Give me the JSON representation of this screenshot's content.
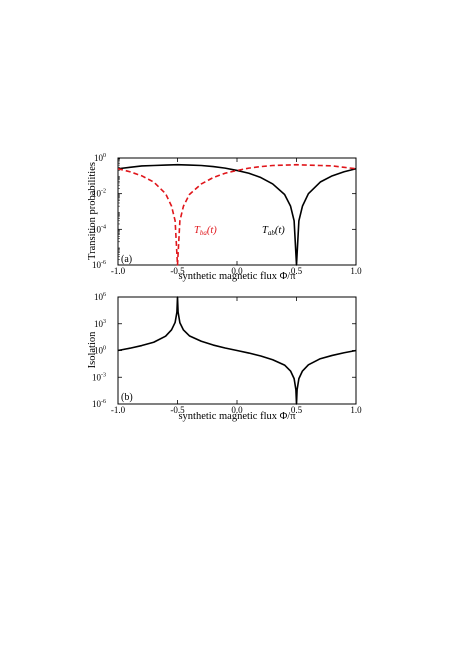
{
  "chart_data": [
    {
      "panel": "(a)",
      "type": "line",
      "ylabel": "Transition probabilities",
      "xlabel": "synthetic magnetic flux  Φ/π",
      "xlim": [
        -1.0,
        1.0
      ],
      "ylim_log10": [
        -6,
        0
      ],
      "yscale": "log",
      "xticks": [
        "-1.0",
        "-0.5",
        "0.0",
        "0.5",
        "1.0"
      ],
      "yticks": [
        {
          "base": "10",
          "exp": "0"
        },
        {
          "base": "10",
          "exp": "-2"
        },
        {
          "base": "10",
          "exp": "-4"
        },
        {
          "base": "10",
          "exp": "-6"
        }
      ],
      "series": [
        {
          "name": "T_ab(t)",
          "label_main": "T",
          "label_sub": "ab",
          "label_tail": "(t)",
          "color": "#000000",
          "style": "solid",
          "x": [
            -1.0,
            -0.9,
            -0.8,
            -0.7,
            -0.6,
            -0.5,
            -0.4,
            -0.3,
            -0.2,
            -0.1,
            0.0,
            0.1,
            0.2,
            0.3,
            0.4,
            0.45,
            0.48,
            0.5,
            0.52,
            0.55,
            0.6,
            0.7,
            0.8,
            0.9,
            1.0
          ],
          "y": [
            0.25,
            0.3,
            0.36,
            0.38,
            0.4,
            0.42,
            0.4,
            0.38,
            0.33,
            0.27,
            0.2,
            0.14,
            0.08,
            0.035,
            0.009,
            0.002,
            0.0003,
            1e-06,
            0.0003,
            0.002,
            0.01,
            0.045,
            0.1,
            0.17,
            0.25
          ]
        },
        {
          "name": "T_ba(t)",
          "label_main": "T",
          "label_sub": "ba",
          "label_tail": "(t)",
          "color": "#e0161b",
          "style": "dashed",
          "x": [
            -1.0,
            -0.9,
            -0.8,
            -0.7,
            -0.6,
            -0.55,
            -0.52,
            -0.5,
            -0.48,
            -0.45,
            -0.4,
            -0.3,
            -0.2,
            -0.1,
            0.0,
            0.1,
            0.2,
            0.3,
            0.4,
            0.5,
            0.6,
            0.7,
            0.8,
            0.9,
            1.0
          ],
          "y": [
            0.25,
            0.17,
            0.1,
            0.045,
            0.01,
            0.002,
            0.0003,
            1e-06,
            0.0003,
            0.002,
            0.009,
            0.035,
            0.08,
            0.14,
            0.2,
            0.27,
            0.33,
            0.38,
            0.4,
            0.42,
            0.4,
            0.38,
            0.36,
            0.3,
            0.25
          ]
        }
      ]
    },
    {
      "panel": "(b)",
      "type": "line",
      "ylabel": "Isolation",
      "xlabel": "synthetic magnetic flux  Φ/π",
      "xlim": [
        -1.0,
        1.0
      ],
      "ylim_log10": [
        -6,
        6
      ],
      "yscale": "log",
      "xticks": [
        "-1.0",
        "-0.5",
        "0.0",
        "0.5",
        "1.0"
      ],
      "yticks": [
        {
          "base": "10",
          "exp": "6"
        },
        {
          "base": "10",
          "exp": "3"
        },
        {
          "base": "10",
          "exp": "0"
        },
        {
          "base": "10",
          "exp": "-3"
        },
        {
          "base": "10",
          "exp": "-6"
        }
      ],
      "series": [
        {
          "color": "#000000",
          "style": "solid",
          "x": [
            -1.0,
            -0.9,
            -0.8,
            -0.7,
            -0.6,
            -0.55,
            -0.52,
            -0.505,
            -0.5,
            -0.495,
            -0.48,
            -0.45,
            -0.4,
            -0.3,
            -0.2,
            -0.1,
            0.0,
            0.1,
            0.2,
            0.3,
            0.4,
            0.45,
            0.48,
            0.495,
            0.5,
            0.505,
            0.52,
            0.55,
            0.6,
            0.7,
            0.8,
            0.9,
            1.0
          ],
          "y": [
            1.0,
            1.8,
            3.6,
            8.4,
            40,
            210,
            1400,
            20000,
            1000000,
            20000,
            1300,
            200,
            44,
            10.9,
            4.1,
            1.9,
            1.0,
            0.52,
            0.24,
            0.092,
            0.023,
            0.005,
            0.0007,
            4e-05,
            1e-06,
            4e-05,
            0.0007,
            0.005,
            0.025,
            0.12,
            0.28,
            0.56,
            1.0
          ]
        }
      ]
    }
  ]
}
